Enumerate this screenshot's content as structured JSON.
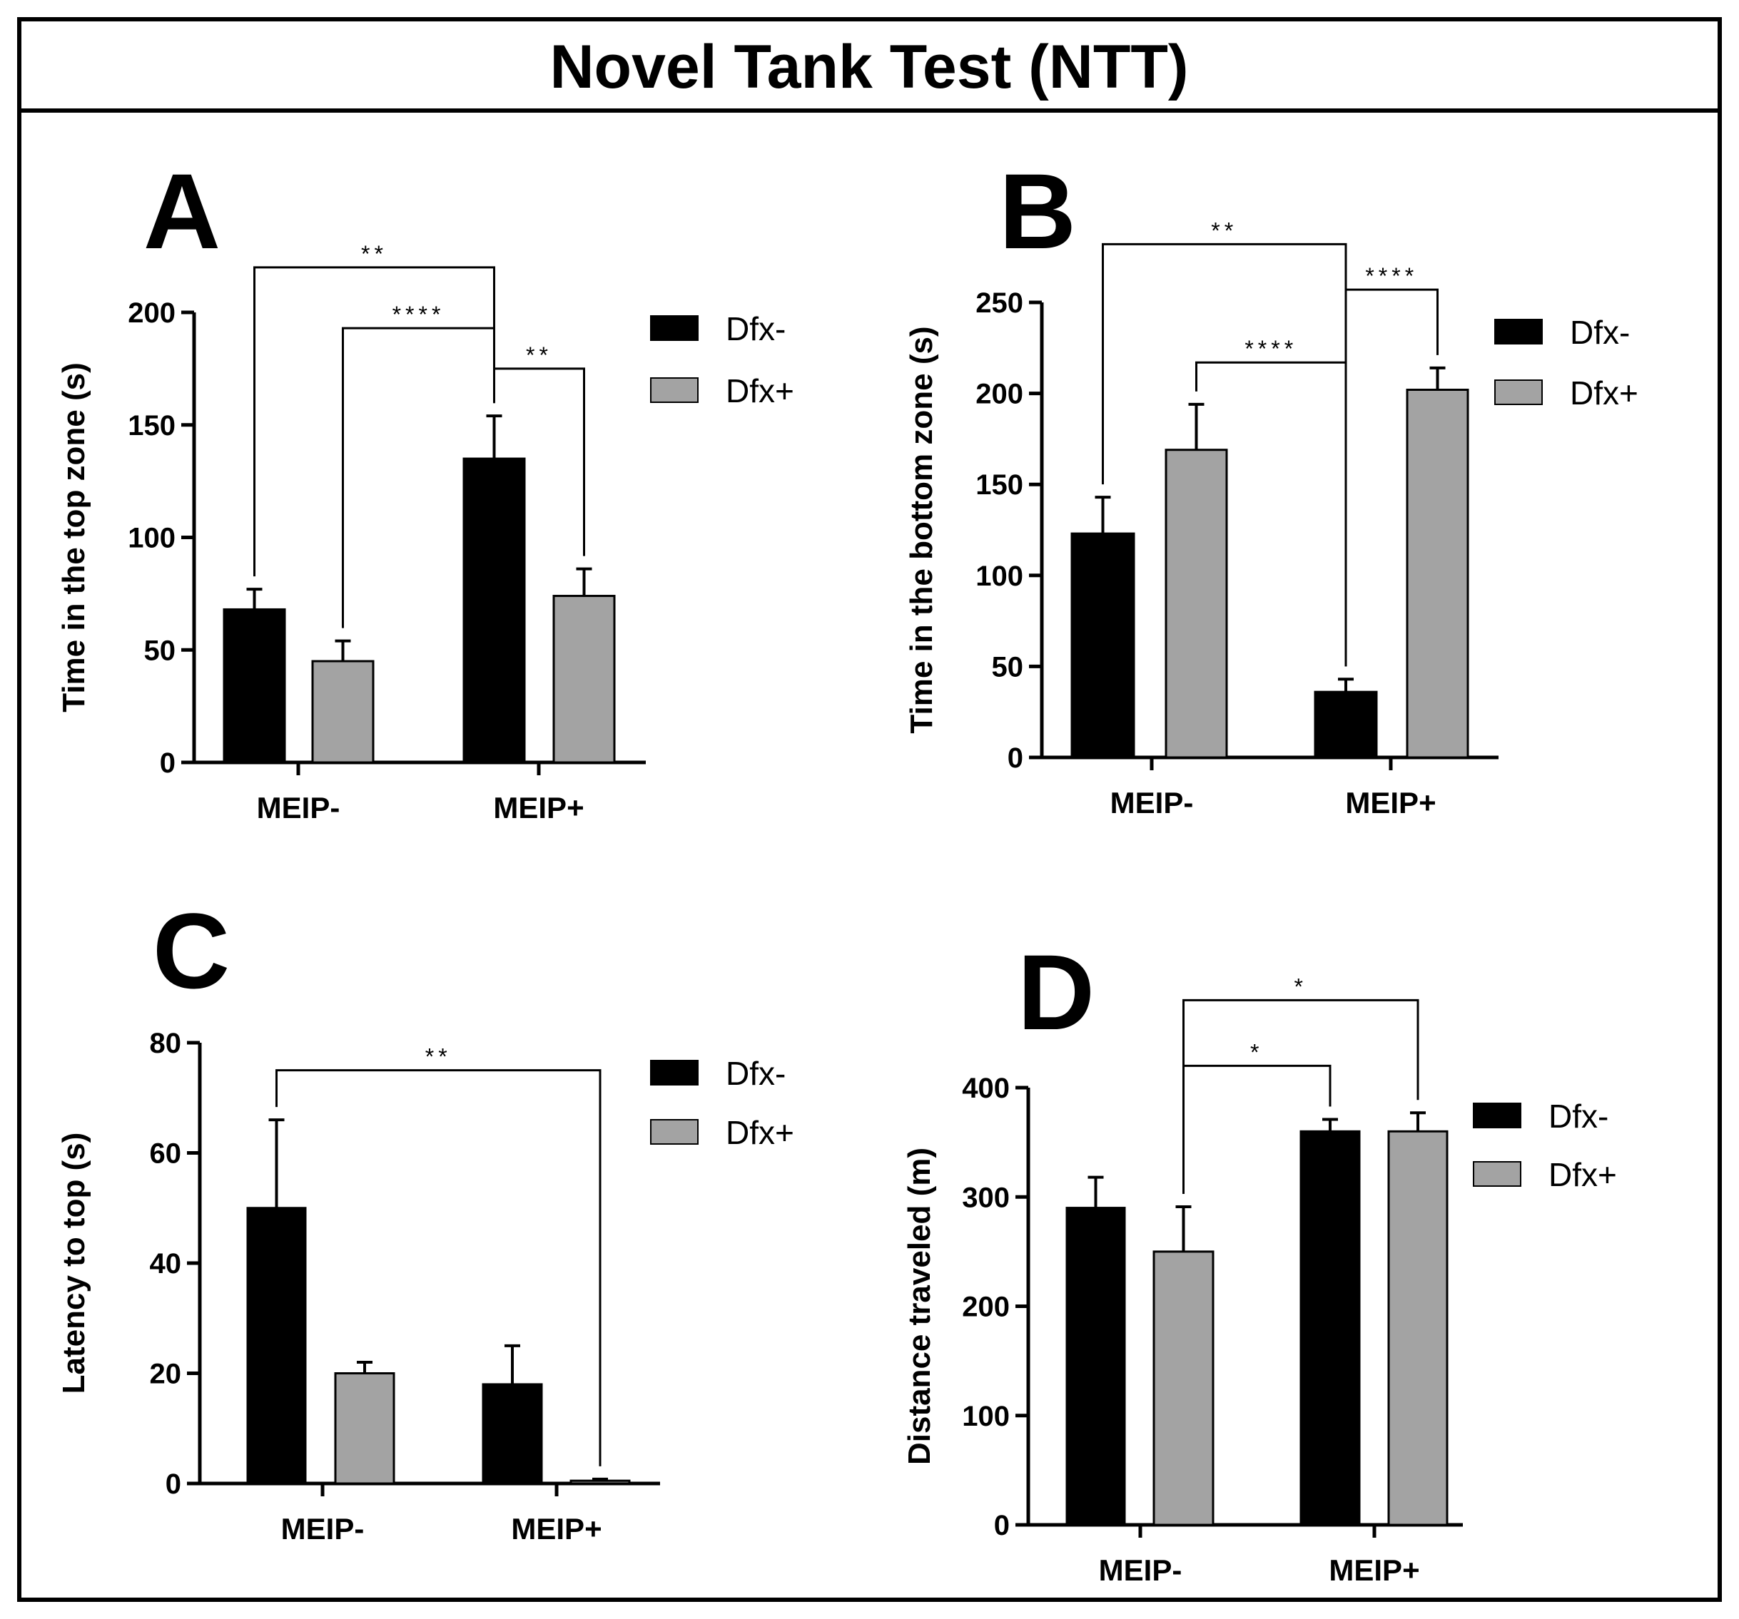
{
  "figure_title": "Novel Tank Test (NTT)",
  "colors": {
    "dfx_minus": "#000000",
    "dfx_plus": "#a3a3a3",
    "frame": "#000000"
  },
  "chart_data": [
    {
      "id": "A",
      "letter": "A",
      "type": "bar",
      "title": "",
      "xlabel": "",
      "ylabel": "Time in the top zone (s)",
      "ylim": [
        0,
        200
      ],
      "yticks": [
        0,
        50,
        100,
        150,
        200
      ],
      "categories": [
        "MEIP-",
        "MEIP+"
      ],
      "legend": [
        "Dfx-",
        "Dfx+"
      ],
      "series": [
        {
          "name": "Dfx-",
          "values": [
            68,
            135
          ],
          "errors": [
            9,
            19
          ]
        },
        {
          "name": "Dfx+",
          "values": [
            45,
            74
          ],
          "errors": [
            9,
            12
          ]
        }
      ],
      "significance": [
        {
          "label": "**",
          "from": [
            0,
            0
          ],
          "to": [
            1,
            0
          ],
          "y": 220
        },
        {
          "label": "****",
          "from": [
            0,
            1
          ],
          "to": [
            1,
            0
          ],
          "y": 193
        },
        {
          "label": "**",
          "from": [
            1,
            0
          ],
          "to": [
            1,
            1
          ],
          "y": 175
        }
      ]
    },
    {
      "id": "B",
      "letter": "B",
      "type": "bar",
      "title": "",
      "xlabel": "",
      "ylabel": "Time in the bottom zone (s)",
      "ylim": [
        0,
        250
      ],
      "yticks": [
        0,
        50,
        100,
        150,
        200,
        250
      ],
      "categories": [
        "MEIP-",
        "MEIP+"
      ],
      "legend": [
        "Dfx-",
        "Dfx+"
      ],
      "series": [
        {
          "name": "Dfx-",
          "values": [
            123,
            36
          ],
          "errors": [
            20,
            7
          ]
        },
        {
          "name": "Dfx+",
          "values": [
            169,
            202
          ],
          "errors": [
            25,
            12
          ]
        }
      ],
      "significance": [
        {
          "label": "**",
          "from": [
            0,
            0
          ],
          "to": [
            1,
            0
          ],
          "y": 282
        },
        {
          "label": "****",
          "from": [
            1,
            0
          ],
          "to": [
            1,
            1
          ],
          "y": 257
        },
        {
          "label": "****",
          "from": [
            0,
            1
          ],
          "to": [
            1,
            0
          ],
          "y": 217
        }
      ]
    },
    {
      "id": "C",
      "letter": "C",
      "type": "bar",
      "title": "",
      "xlabel": "",
      "ylabel": "Latency to top (s)",
      "ylim": [
        0,
        80
      ],
      "yticks": [
        0,
        20,
        40,
        60,
        80
      ],
      "categories": [
        "MEIP-",
        "MEIP+"
      ],
      "legend": [
        "Dfx-",
        "Dfx+"
      ],
      "series": [
        {
          "name": "Dfx-",
          "values": [
            50,
            18
          ],
          "errors": [
            16,
            7
          ]
        },
        {
          "name": "Dfx+",
          "values": [
            20,
            0.5
          ],
          "errors": [
            2,
            0.3
          ]
        }
      ],
      "significance": [
        {
          "label": "**",
          "from": [
            0,
            0
          ],
          "to": [
            1,
            1
          ],
          "y": 75
        }
      ]
    },
    {
      "id": "D",
      "letter": "D",
      "type": "bar",
      "title": "",
      "xlabel": "",
      "ylabel": "Distance traveled (m)",
      "ylim": [
        0,
        400
      ],
      "yticks": [
        0,
        100,
        200,
        300,
        400
      ],
      "categories": [
        "MEIP-",
        "MEIP+"
      ],
      "legend": [
        "Dfx-",
        "Dfx+"
      ],
      "series": [
        {
          "name": "Dfx-",
          "values": [
            290,
            360
          ],
          "errors": [
            28,
            11
          ]
        },
        {
          "name": "Dfx+",
          "values": [
            250,
            360
          ],
          "errors": [
            41,
            17
          ]
        }
      ],
      "significance": [
        {
          "label": "*",
          "from": [
            0,
            1
          ],
          "to": [
            1,
            1
          ],
          "y": 480
        },
        {
          "label": "*",
          "from": [
            0,
            1
          ],
          "to": [
            1,
            0
          ],
          "y": 420
        }
      ]
    }
  ]
}
